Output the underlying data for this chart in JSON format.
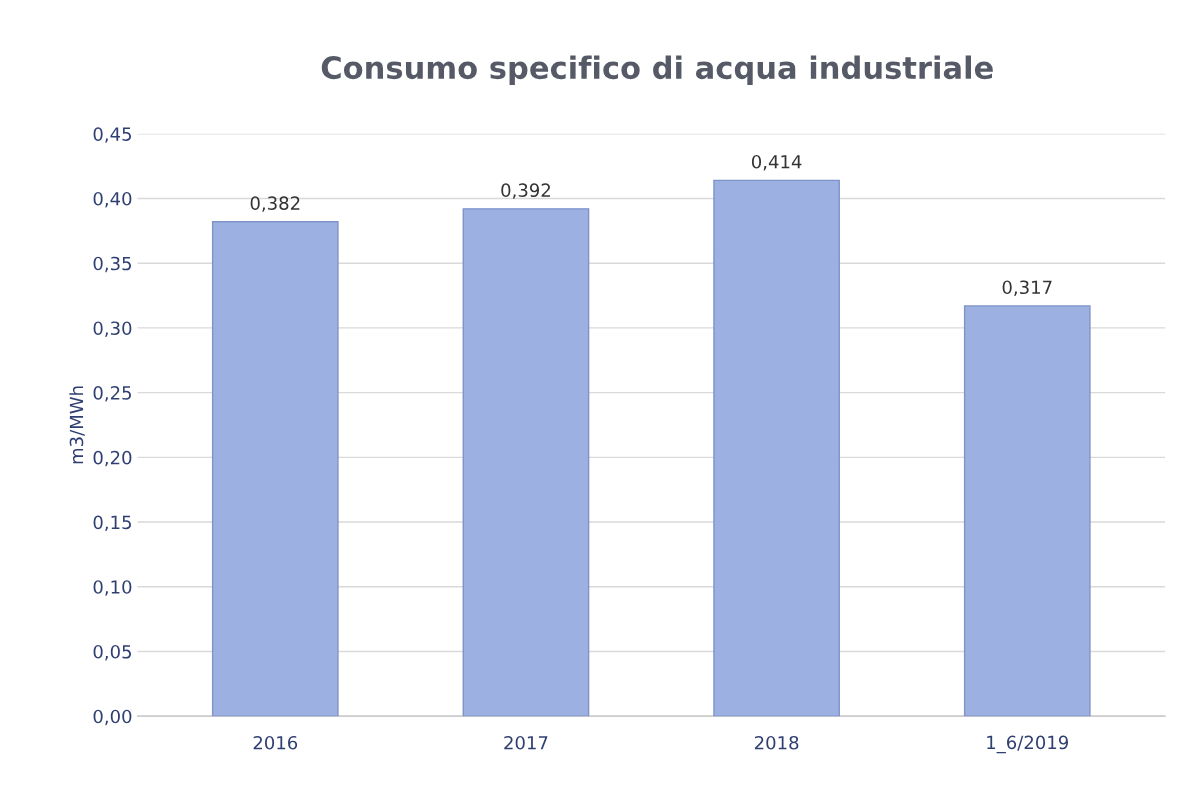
{
  "chart_data": {
    "type": "bar",
    "title": "Consumo specifico di acqua industriale",
    "ylabel": "m3/MWh",
    "categories": [
      "2016",
      "2017",
      "2018",
      "1_6/2019"
    ],
    "values": [
      0.382,
      0.392,
      0.414,
      0.317
    ],
    "value_labels": [
      "0,382",
      "0,392",
      "0,414",
      "0,317"
    ],
    "color": "#9cb0e2",
    "ylim": [
      0,
      0.45
    ],
    "yticks": [
      {
        "value": 0,
        "label": "0,00"
      },
      {
        "value": 0.05,
        "label": "0,05"
      },
      {
        "value": 0.1,
        "label": "0,10"
      },
      {
        "value": 0.15,
        "label": "0,15"
      },
      {
        "value": 0.2,
        "label": "0,20"
      },
      {
        "value": 0.25,
        "label": "0,25"
      },
      {
        "value": 0.3,
        "label": "0,30"
      },
      {
        "value": 0.35,
        "label": "0,35"
      },
      {
        "value": 0.4,
        "label": "0,40"
      },
      {
        "value": 0.45,
        "label": "0,45"
      }
    ],
    "grid": "y",
    "legend": false
  }
}
